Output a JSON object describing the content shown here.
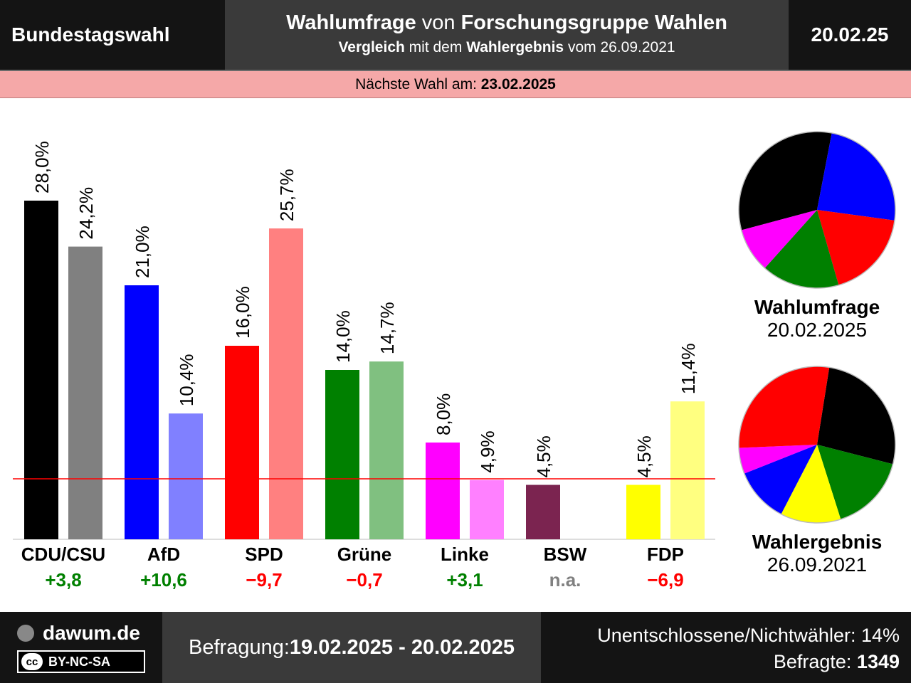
{
  "header": {
    "left": "Bundestagswahl",
    "title_bold1": "Wahlumfrage",
    "title_mid": " von ",
    "title_bold2": "Forschungsgruppe Wahlen",
    "sub_bold1": "Vergleich",
    "sub_mid1": " mit dem ",
    "sub_bold2": "Wahlergebnis",
    "sub_mid2": " vom 26.09.2021",
    "date": "20.02.25"
  },
  "next_election": {
    "label": "Nächste Wahl am: ",
    "date": "23.02.2025"
  },
  "chart_data": {
    "type": "bar",
    "categories": [
      "CDU/CSU",
      "AfD",
      "SPD",
      "Grüne",
      "Linke",
      "BSW",
      "FDP"
    ],
    "series": [
      {
        "name": "Wahlumfrage",
        "values": [
          28.0,
          21.0,
          16.0,
          14.0,
          8.0,
          4.5,
          4.5
        ],
        "labels": [
          "28,0%",
          "21,0%",
          "16,0%",
          "14,0%",
          "8,0%",
          "4,5%",
          "4,5%"
        ],
        "colors": [
          "#000000",
          "#0000ff",
          "#ff0000",
          "#008000",
          "#ff00ff",
          "#7b2450",
          "#ffff00"
        ]
      },
      {
        "name": "Wahlergebnis",
        "values": [
          24.2,
          10.4,
          25.7,
          14.7,
          4.9,
          null,
          11.4
        ],
        "labels": [
          "24,2%",
          "10,4%",
          "25,7%",
          "14,7%",
          "4,9%",
          "",
          "11,4%"
        ],
        "colors": [
          "#808080",
          "#8080ff",
          "#ff8080",
          "#80c080",
          "#ff80ff",
          "#bf92a8",
          "#ffff80"
        ]
      }
    ],
    "differences": [
      "+3,8",
      "+10,6",
      "−9,7",
      "−0,7",
      "+3,1",
      "n.a.",
      "−6,9"
    ],
    "difference_colors": [
      "#008000",
      "#008000",
      "#ff0000",
      "#ff0000",
      "#008000",
      "#808080",
      "#ff0000"
    ],
    "threshold": 5,
    "ylim": [
      0,
      28
    ]
  },
  "pies": [
    {
      "title": "Wahlumfrage",
      "date": "20.02.2025",
      "slices": [
        {
          "party": "CDU/CSU",
          "value": 28.0,
          "color": "#000000"
        },
        {
          "party": "AfD",
          "value": 21.0,
          "color": "#0000ff"
        },
        {
          "party": "SPD",
          "value": 16.0,
          "color": "#ff0000"
        },
        {
          "party": "Grüne",
          "value": 14.0,
          "color": "#008000"
        },
        {
          "party": "Linke",
          "value": 8.0,
          "color": "#ff00ff"
        }
      ]
    },
    {
      "title": "Wahlergebnis",
      "date": "26.09.2021",
      "slices": [
        {
          "party": "CDU/CSU",
          "value": 24.2,
          "color": "#000000"
        },
        {
          "party": "Grüne",
          "value": 14.7,
          "color": "#008000"
        },
        {
          "party": "FDP",
          "value": 11.4,
          "color": "#ffff00"
        },
        {
          "party": "AfD",
          "value": 10.4,
          "color": "#0000ff"
        },
        {
          "party": "Linke",
          "value": 4.9,
          "color": "#ff00ff"
        },
        {
          "party": "SPD",
          "value": 25.7,
          "color": "#ff0000"
        }
      ]
    }
  ],
  "footer": {
    "brand": "dawum.de",
    "license": "BY-NC-SA",
    "license_cc": "cc",
    "survey_label": "Befragung: ",
    "survey_dates": "19.02.2025 - 20.02.2025",
    "undecided": "Unentschlossene/Nichtwähler: 14%",
    "respondents_label": "Befragte: ",
    "respondents": "1349"
  }
}
